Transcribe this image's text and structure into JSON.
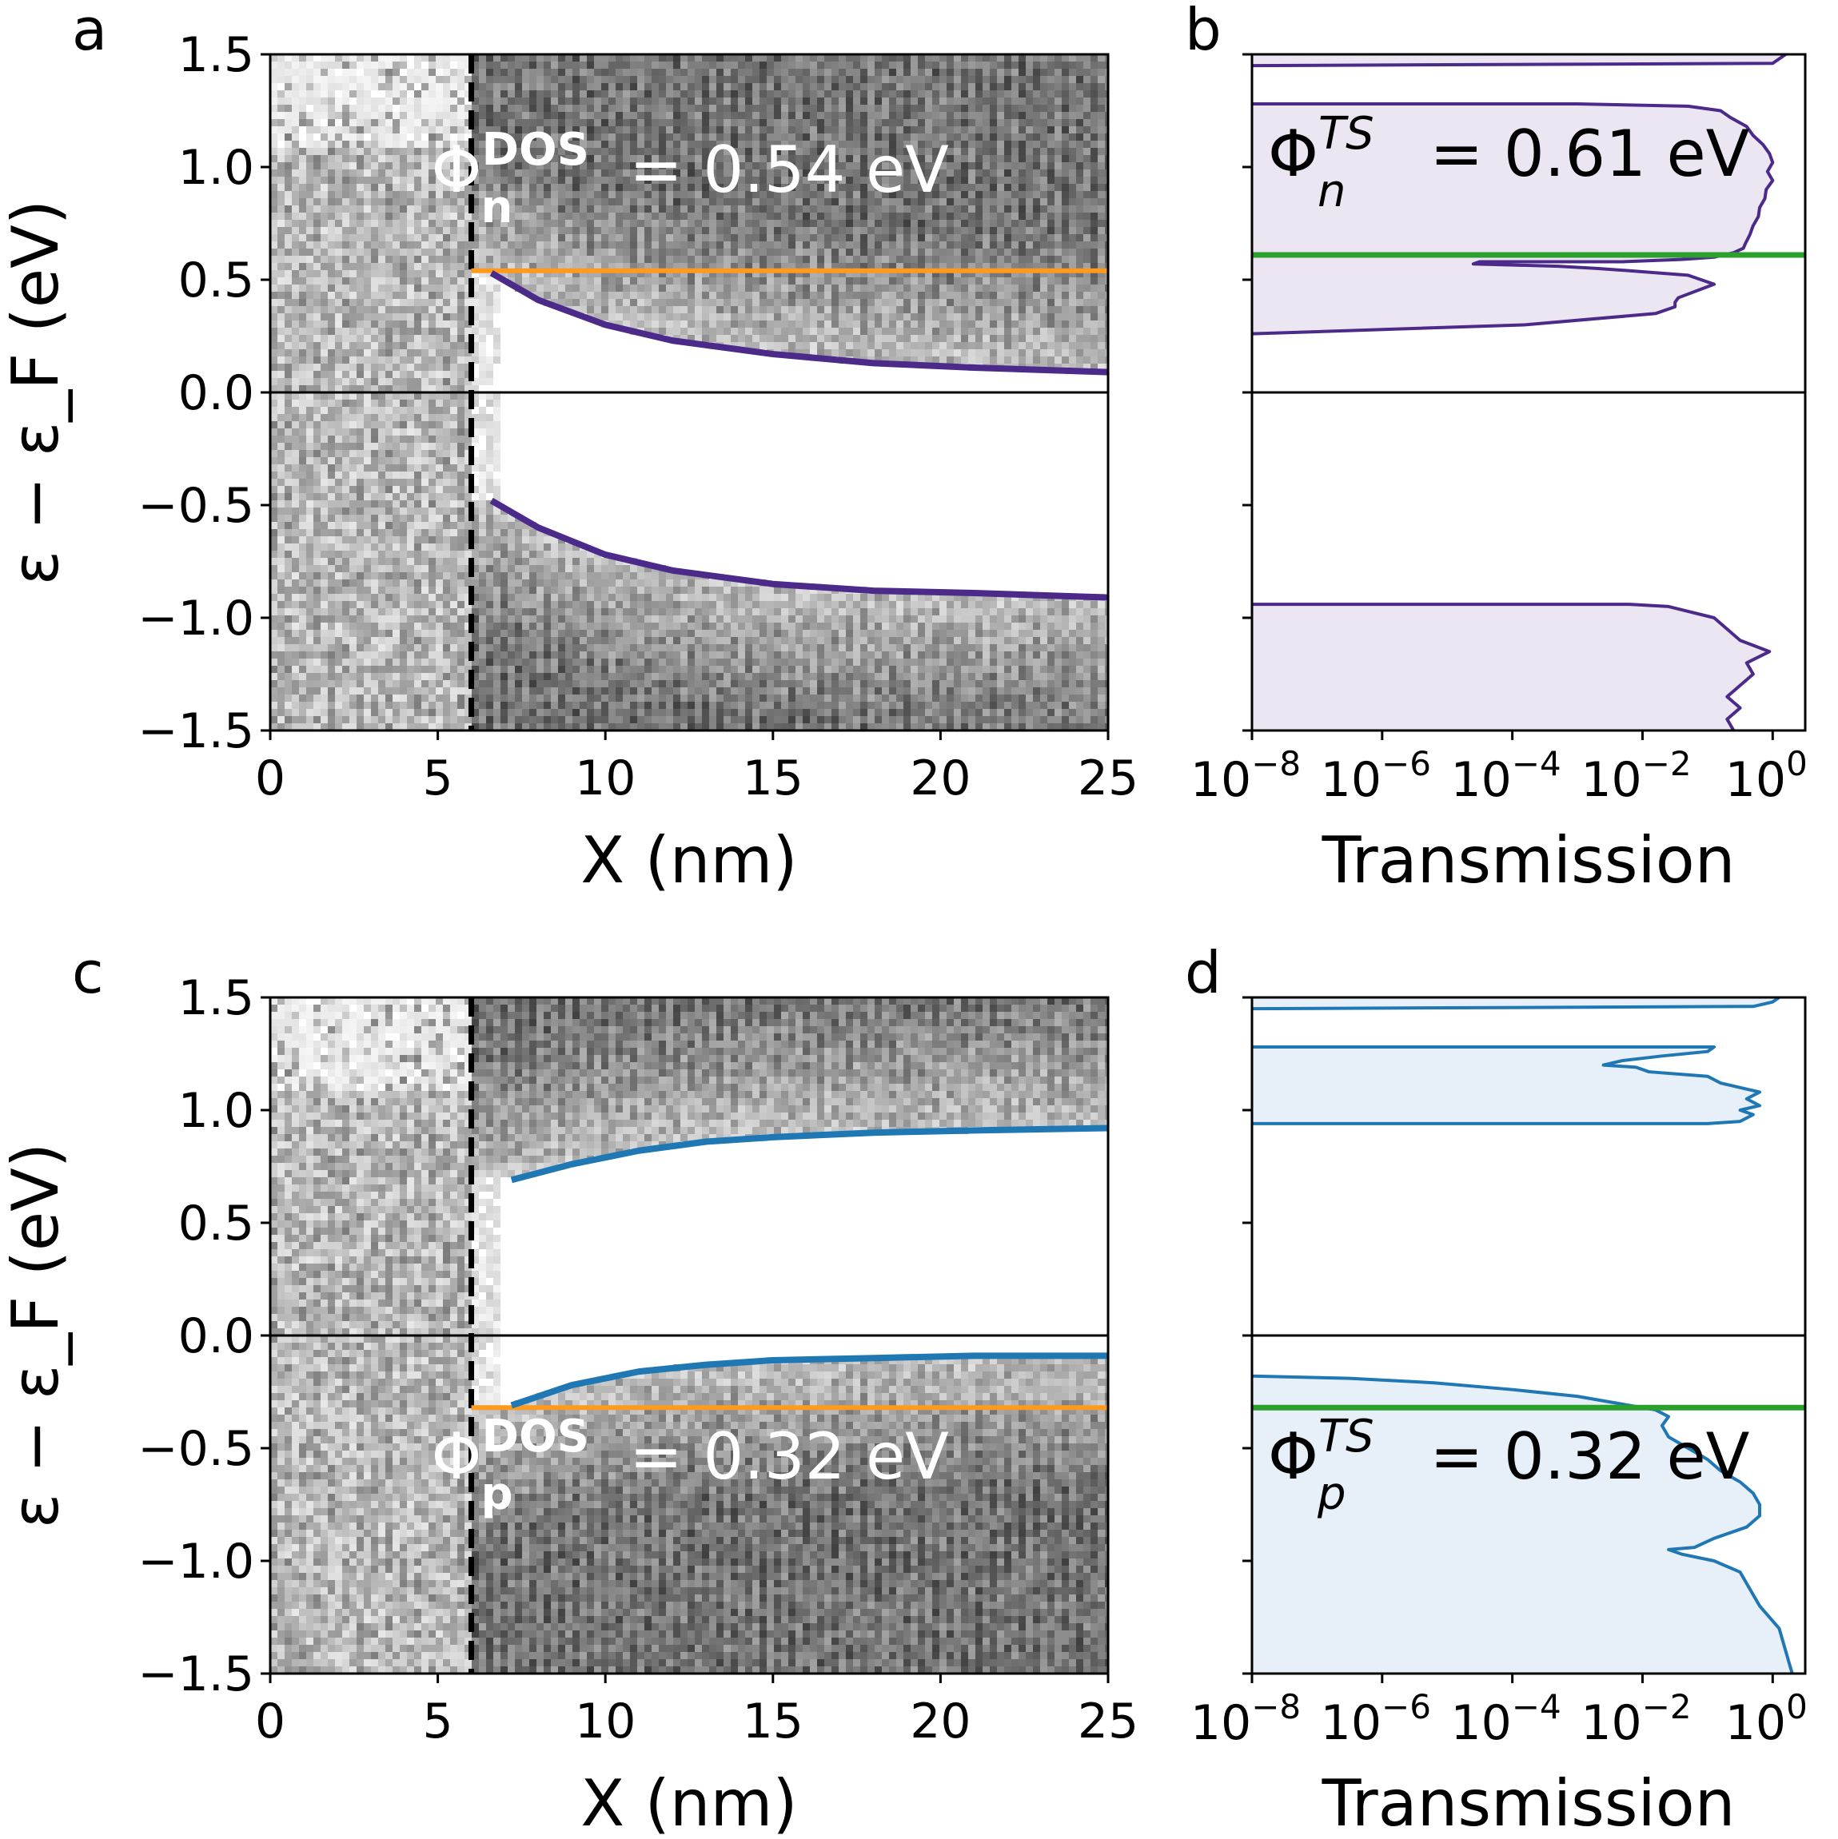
{
  "figure": {
    "panel_labels": [
      "a",
      "b",
      "c",
      "d"
    ]
  },
  "chart_data": [
    {
      "id": "a",
      "type": "heatmap",
      "xlabel": "X (nm)",
      "ylabel": "ε − ε_F (eV)",
      "xlim": [
        0,
        25
      ],
      "ylim": [
        -1.5,
        1.5
      ],
      "xticks": [
        "0",
        "5",
        "10",
        "15",
        "20",
        "25"
      ],
      "yticks": [
        "−1.5",
        "−1.0",
        "−0.5",
        "0.0",
        "0.5",
        "1.0",
        "1.5"
      ],
      "interface_x": 6,
      "fermi_level": 0.0,
      "annotation": {
        "base": "Φ",
        "sub": "n",
        "sup": "DOS",
        "value": " = 0.54 eV"
      },
      "series": [
        {
          "color": "#4b2a8a",
          "x": [
            6.6,
            8,
            10,
            12,
            15,
            18,
            21,
            25
          ],
          "values": [
            0.53,
            0.41,
            0.3,
            0.23,
            0.17,
            0.13,
            0.11,
            0.09
          ]
        },
        {
          "color": "#4b2a8a",
          "x": [
            6.6,
            8,
            10,
            12,
            15,
            18,
            21,
            25
          ],
          "values": [
            -0.48,
            -0.6,
            -0.72,
            -0.79,
            -0.85,
            -0.88,
            -0.89,
            -0.91
          ]
        }
      ],
      "hlines": [
        {
          "color": "#ff9a1f",
          "y": 0.54,
          "xmin": 6,
          "xmax": 25
        }
      ]
    },
    {
      "id": "b",
      "type": "area",
      "xlabel": "Transmission",
      "xscale": "log",
      "xlim": [
        -8,
        0.5
      ],
      "ylim": [
        -1.5,
        1.5
      ],
      "xticks": [
        {
          "base": "10",
          "exp": "−8"
        },
        {
          "base": "10",
          "exp": "−6"
        },
        {
          "base": "10",
          "exp": "−4"
        },
        {
          "base": "10",
          "exp": "−2"
        },
        {
          "base": "10",
          "exp": "0"
        }
      ],
      "annotation": {
        "base": "Φ",
        "sub": "n",
        "sup": "TS",
        "value": " = 0.61 eV"
      },
      "line_color": "#4b2a8a",
      "fill_color": "#ece6f2",
      "hlines": [
        {
          "color": "#2ca02c",
          "y": 0.61
        }
      ],
      "segments": [
        {
          "y": [
            1.45,
            1.46,
            1.48,
            1.5
          ],
          "log10_T": [
            -8,
            0.0,
            0.1,
            0.2
          ]
        },
        {
          "y": [
            0.26,
            0.3,
            0.35,
            0.38,
            0.4,
            0.42,
            0.48,
            0.52,
            0.54,
            0.55,
            0.56,
            0.57,
            0.58,
            0.58,
            0.59,
            0.6,
            0.62,
            0.64,
            0.66,
            0.7,
            0.74,
            0.78,
            0.82,
            0.86,
            0.9,
            0.94,
            0.98,
            1.02,
            1.06,
            1.1,
            1.14,
            1.18,
            1.22,
            1.25,
            1.27,
            1.28,
            1.28
          ],
          "log10_T": [
            -8,
            -3.8,
            -1.8,
            -1.5,
            -1.5,
            -1.45,
            -0.9,
            -1.3,
            -2.2,
            -2.7,
            -3.3,
            -4.6,
            -4.5,
            -2.3,
            -1.4,
            -0.9,
            -0.6,
            -0.45,
            -0.42,
            -0.35,
            -0.3,
            -0.22,
            -0.2,
            -0.12,
            -0.1,
            0.0,
            -0.08,
            0.0,
            -0.05,
            -0.15,
            -0.3,
            -0.4,
            -0.65,
            -0.8,
            -1.3,
            -3.0,
            -8
          ]
        },
        {
          "y": [
            -0.94,
            -0.94,
            -0.95,
            -1.0,
            -1.05,
            -1.1,
            -1.15,
            -1.2,
            -1.25,
            -1.3,
            -1.35,
            -1.4,
            -1.45,
            -1.5
          ],
          "log10_T": [
            -8,
            -2.2,
            -1.6,
            -0.9,
            -0.7,
            -0.5,
            -0.05,
            -0.4,
            -0.3,
            -0.5,
            -0.7,
            -0.5,
            -0.7,
            -0.6
          ]
        }
      ]
    },
    {
      "id": "c",
      "type": "heatmap",
      "xlabel": "X (nm)",
      "ylabel": "ε − ε_F (eV)",
      "xlim": [
        0,
        25
      ],
      "ylim": [
        -1.5,
        1.5
      ],
      "xticks": [
        "0",
        "5",
        "10",
        "15",
        "20",
        "25"
      ],
      "yticks": [
        "−1.5",
        "−1.0",
        "−0.5",
        "0.0",
        "0.5",
        "1.0",
        "1.5"
      ],
      "interface_x": 6,
      "fermi_level": 0.0,
      "annotation": {
        "base": "Φ",
        "sub": "p",
        "sup": "DOS",
        "value": " = 0.32 eV"
      },
      "series": [
        {
          "color": "#1f77b4",
          "x": [
            7.2,
            9,
            11,
            13,
            15,
            18,
            21,
            25
          ],
          "values": [
            0.69,
            0.76,
            0.82,
            0.86,
            0.88,
            0.9,
            0.91,
            0.92
          ]
        },
        {
          "color": "#1f77b4",
          "x": [
            7.2,
            9,
            11,
            13,
            15,
            18,
            21,
            25
          ],
          "values": [
            -0.31,
            -0.22,
            -0.16,
            -0.13,
            -0.11,
            -0.1,
            -0.09,
            -0.09
          ]
        }
      ],
      "hlines": [
        {
          "color": "#ff9a1f",
          "y": -0.32,
          "xmin": 6,
          "xmax": 25
        }
      ]
    },
    {
      "id": "d",
      "type": "area",
      "xlabel": "Transmission",
      "xscale": "log",
      "xlim": [
        -8,
        0.5
      ],
      "ylim": [
        -1.5,
        1.5
      ],
      "xticks": [
        {
          "base": "10",
          "exp": "−8"
        },
        {
          "base": "10",
          "exp": "−6"
        },
        {
          "base": "10",
          "exp": "−4"
        },
        {
          "base": "10",
          "exp": "−2"
        },
        {
          "base": "10",
          "exp": "0"
        }
      ],
      "annotation": {
        "base": "Φ",
        "sub": "p",
        "sup": "TS",
        "value": " = 0.32 eV"
      },
      "line_color": "#1f77b4",
      "fill_color": "#e7eff8",
      "hlines": [
        {
          "color": "#2ca02c",
          "y": -0.32
        }
      ],
      "segments": [
        {
          "y": [
            1.45,
            1.46,
            1.48,
            1.5
          ],
          "log10_T": [
            -8,
            -0.3,
            0.0,
            0.1
          ]
        },
        {
          "y": [
            0.94,
            0.94,
            0.95,
            0.98,
            1.0,
            1.02,
            1.05,
            1.08,
            1.1,
            1.12,
            1.15,
            1.17,
            1.19,
            1.2,
            1.22,
            1.24,
            1.26,
            1.28,
            1.28
          ],
          "log10_T": [
            -8,
            -1.0,
            -0.5,
            -0.3,
            -0.5,
            -0.2,
            -0.4,
            -0.2,
            -0.5,
            -0.8,
            -1.0,
            -1.9,
            -2.1,
            -2.6,
            -2.3,
            -1.7,
            -1.0,
            -0.9,
            -8
          ]
        },
        {
          "y": [
            -1.5,
            -1.4,
            -1.3,
            -1.2,
            -1.1,
            -1.05,
            -1.0,
            -0.97,
            -0.95,
            -0.94,
            -0.9,
            -0.85,
            -0.8,
            -0.75,
            -0.7,
            -0.65,
            -0.6,
            -0.55,
            -0.5,
            -0.45,
            -0.4,
            -0.36,
            -0.33,
            -0.3,
            -0.27,
            -0.24,
            -0.21,
            -0.19,
            -0.18
          ],
          "log10_T": [
            0.3,
            0.2,
            0.1,
            -0.2,
            -0.4,
            -0.5,
            -0.9,
            -1.4,
            -1.6,
            -1.2,
            -0.9,
            -0.4,
            -0.2,
            -0.2,
            -0.3,
            -0.5,
            -0.8,
            -1.0,
            -1.3,
            -1.6,
            -1.7,
            -1.6,
            -1.8,
            -2.4,
            -3.0,
            -4.0,
            -5.2,
            -6.5,
            -8
          ]
        }
      ]
    }
  ]
}
